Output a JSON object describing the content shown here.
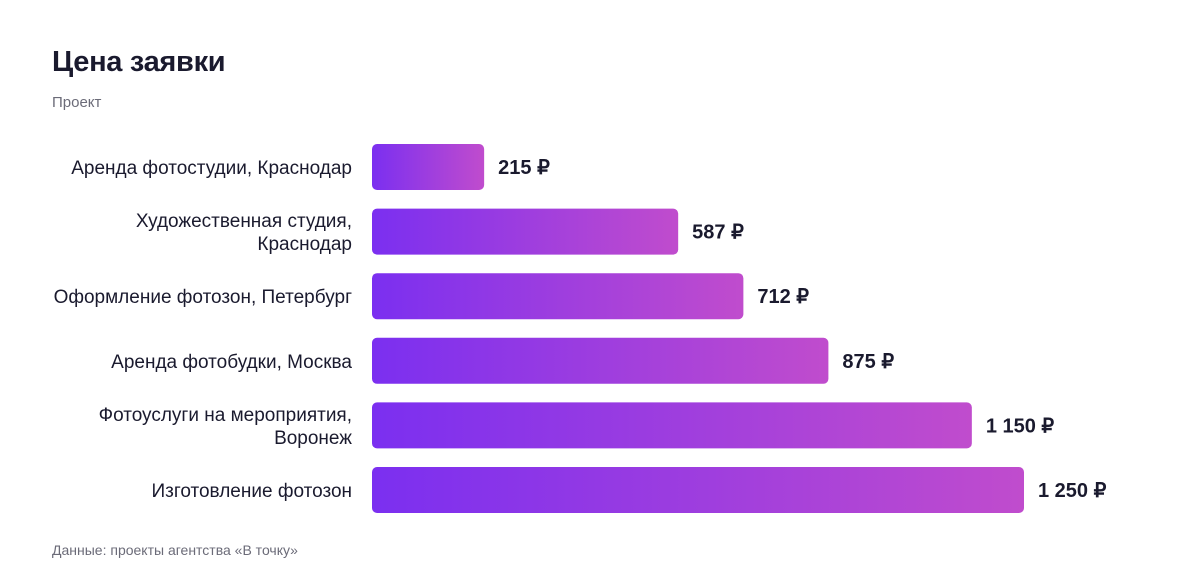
{
  "title": "Цена заявки",
  "subtitle": "Проект",
  "source": "Данные: проекты агентства «В точку»",
  "colors": {
    "bar_start": "#7b2ff0",
    "bar_end": "#c04ccd",
    "text": "#1a1a2e",
    "muted": "#6b6b78"
  },
  "chart_data": {
    "type": "bar",
    "orientation": "horizontal",
    "categories": [
      [
        "Аренда фотостудии, Краснодар"
      ],
      [
        "Художественная студия,",
        "Краснодар"
      ],
      [
        "Оформление фотозон, Петербург"
      ],
      [
        "Аренда фотобудки, Москва"
      ],
      [
        "Фотоуслуги на мероприятия,",
        "Воронеж"
      ],
      [
        "Изготовление фотозон"
      ]
    ],
    "values": [
      215,
      587,
      712,
      875,
      1150,
      1250
    ],
    "value_labels": [
      "215 ₽",
      "587 ₽",
      "712 ₽",
      "875 ₽",
      "1 150 ₽",
      "1 250 ₽"
    ],
    "xlim": [
      0,
      1250
    ],
    "grid": false,
    "legend": "none"
  }
}
